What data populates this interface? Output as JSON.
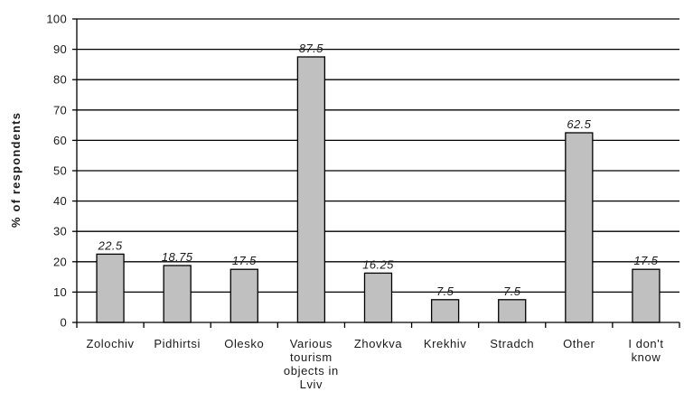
{
  "chart_data": {
    "type": "bar",
    "ylabel": "% of respondents",
    "ylim": [
      0,
      100
    ],
    "yticks": [
      0,
      10,
      20,
      30,
      40,
      50,
      60,
      70,
      80,
      90,
      100
    ],
    "grid": true,
    "categories": [
      [
        "Zolochiv"
      ],
      [
        "Pidhirtsi"
      ],
      [
        "Olesko"
      ],
      [
        "Various",
        "tourism",
        "objects in",
        "Lviv"
      ],
      [
        "Zhovkva"
      ],
      [
        "Krekhiv"
      ],
      [
        "Stradch"
      ],
      [
        "Other"
      ],
      [
        "I don't",
        "know"
      ]
    ],
    "values": [
      22.5,
      18.75,
      17.5,
      87.5,
      16.25,
      7.5,
      7.5,
      62.5,
      17.5
    ],
    "data_labels": [
      "22.5",
      "18.75",
      "17.5",
      "87.5",
      "16.25",
      "7.5",
      "7.5",
      "62.5",
      "17.5"
    ],
    "colors": {
      "bar_fill": "#c0c0c0",
      "bar_stroke": "#000000",
      "grid": "#000000",
      "axis": "#000000"
    }
  }
}
